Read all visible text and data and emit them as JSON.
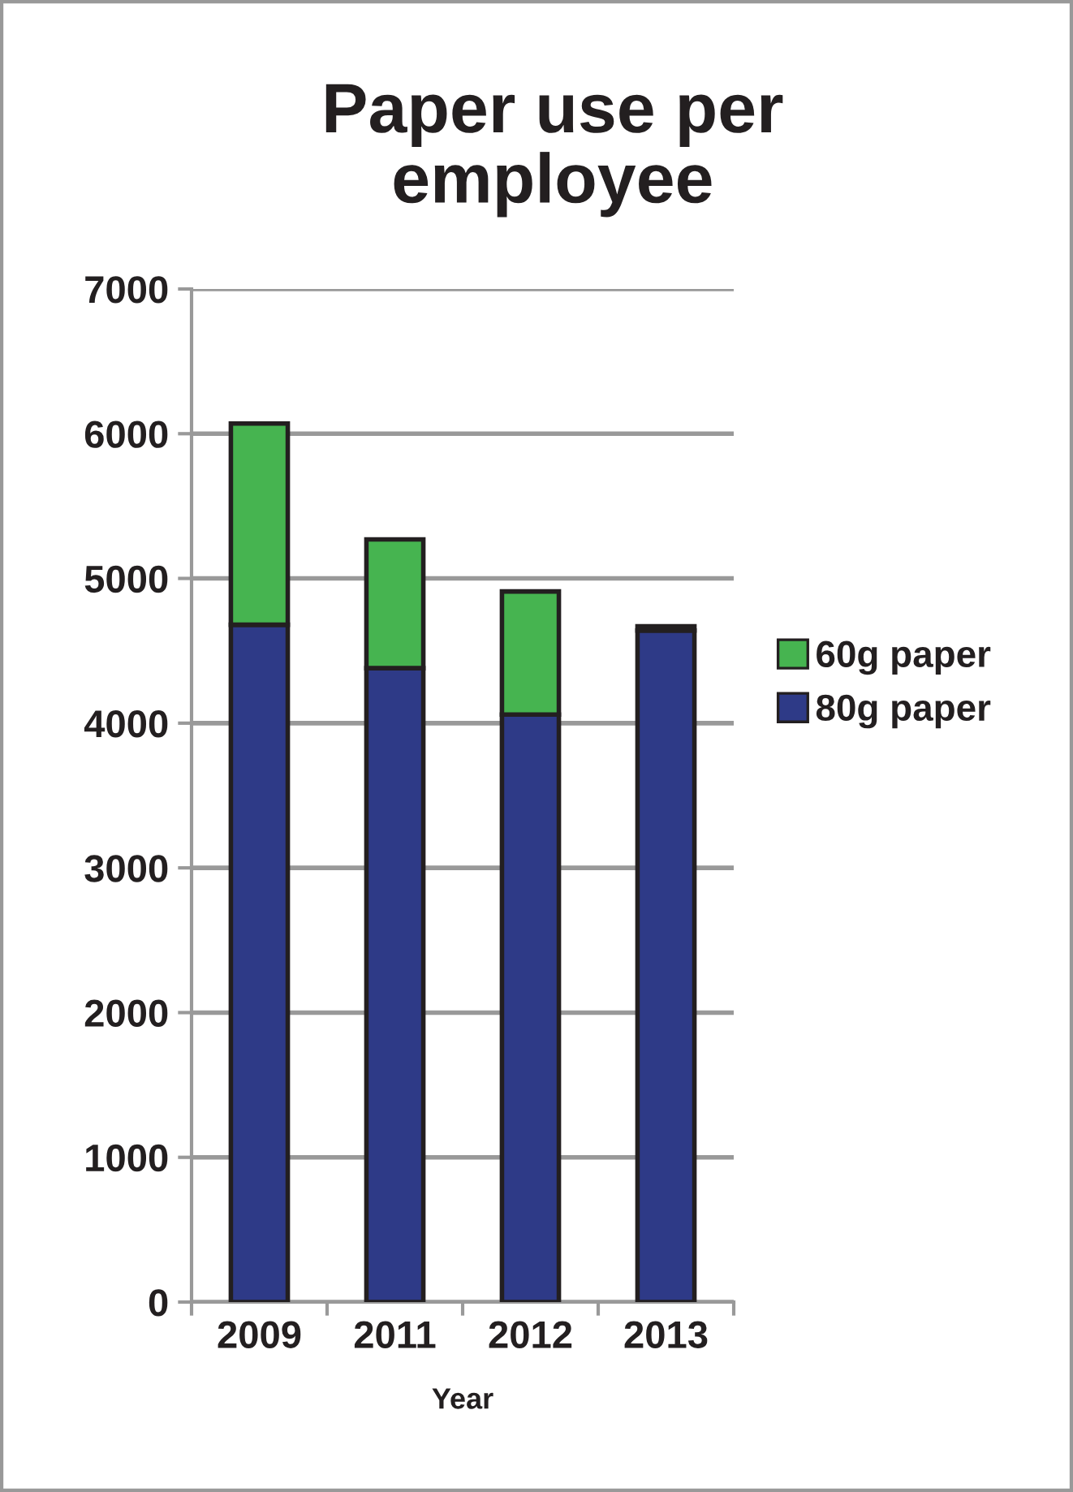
{
  "chart_data": {
    "type": "bar",
    "title": "Paper use per employee",
    "xlabel": "Year",
    "categories": [
      "2009",
      "2011",
      "2012",
      "2013"
    ],
    "stacked": true,
    "series": [
      {
        "name": "80g paper",
        "color": "#2e3a87",
        "values": [
          4680,
          4380,
          4060,
          4640
        ]
      },
      {
        "name": "60g paper",
        "color": "#46b450",
        "values": [
          1390,
          890,
          850,
          30
        ]
      }
    ],
    "ylim": [
      0,
      7000
    ],
    "yticks": [
      0,
      1000,
      2000,
      3000,
      4000,
      5000,
      6000,
      7000
    ],
    "grid": "y",
    "legend": "right"
  }
}
